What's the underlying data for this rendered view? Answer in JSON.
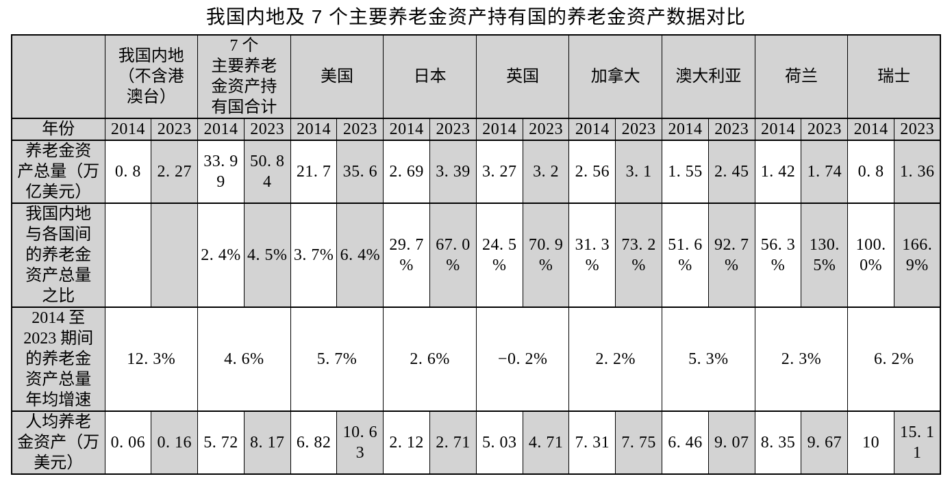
{
  "title": "我国内地及 7 个主要养老金资产持有国的养老金资产数据对比",
  "colors": {
    "page_bg": "#ffffff",
    "header_bg": "#d3d3d3",
    "shaded_cell_bg": "#d3d3d3",
    "border": "#000000",
    "text": "#000000"
  },
  "table": {
    "corner": "",
    "countries": [
      "我国内地\n（不含港\n澳台）",
      "7 个\n主要养老\n金资产持\n有国合计",
      "美国",
      "日本",
      "英国",
      "加拿大",
      "澳大利亚",
      "荷兰",
      "瑞士"
    ],
    "year_label": "年份",
    "years": [
      "2014",
      "2023"
    ],
    "body_rows": [
      {
        "label": "养老金资\n产总量（万\n亿美元）",
        "merged": false,
        "cells": [
          "0. 8",
          "2. 27",
          "33. 9\n9",
          "50. 8\n4",
          "21. 7",
          "35. 6",
          "2. 69",
          "3. 39",
          "3. 27",
          "3. 2",
          "2. 56",
          "3. 1",
          "1. 55",
          "2. 45",
          "1. 42",
          "1. 74",
          "0. 8",
          "1. 36"
        ]
      },
      {
        "label": "我国内地\n与各国间\n的养老金\n资产总量\n之比",
        "merged": false,
        "cells": [
          "",
          "",
          "2. 4%",
          "4. 5%",
          "3. 7%",
          "6. 4%",
          "29. 7\n%",
          "67. 0\n%",
          "24. 5\n%",
          "70. 9\n%",
          "31. 3\n%",
          "73. 2\n%",
          "51. 6\n%",
          "92. 7\n%",
          "56. 3\n%",
          "130.\n5%",
          "100.\n0%",
          "166.\n9%"
        ]
      },
      {
        "label": "2014 至\n2023 期间\n的养老金\n资产总量\n年均增速",
        "merged": true,
        "cells": [
          "12. 3%",
          "4. 6%",
          "5. 7%",
          "2. 6%",
          "−0. 2%",
          "2. 2%",
          "5. 3%",
          "2. 3%",
          "6. 2%"
        ]
      },
      {
        "label": "人均养老\n金资产（万\n美元）",
        "merged": false,
        "cells": [
          "0. 06",
          "0. 16",
          "5. 72",
          "8. 17",
          "6. 82",
          "10. 6\n3",
          "2. 12",
          "2. 71",
          "5. 03",
          "4. 71",
          "7. 31",
          "7. 75",
          "6. 46",
          "9. 07",
          "8. 35",
          "9. 67",
          "10",
          "15. 1\n1"
        ]
      }
    ]
  },
  "chart_data": {
    "type": "table",
    "title": "我国内地及7个主要养老金资产持有国的养老金资产数据对比",
    "columns": [
      "我国内地（不含港澳台）",
      "7个主要养老金资产持有国合计",
      "美国",
      "日本",
      "英国",
      "加拿大",
      "澳大利亚",
      "荷兰",
      "瑞士"
    ],
    "years": [
      2014,
      2023
    ],
    "rows": [
      {
        "metric": "养老金资产总量（万亿美元）",
        "values_2014": [
          0.8,
          33.99,
          21.7,
          2.69,
          3.27,
          2.56,
          1.55,
          1.42,
          0.8
        ],
        "values_2023": [
          2.27,
          50.84,
          35.6,
          3.39,
          3.2,
          3.1,
          2.45,
          1.74,
          1.36
        ]
      },
      {
        "metric": "我国内地与各国间的养老金资产总量之比",
        "values_2014": [
          null,
          "2.4%",
          "3.7%",
          "29.7%",
          "24.5%",
          "31.3%",
          "51.6%",
          "56.3%",
          "100.0%"
        ],
        "values_2023": [
          null,
          "4.5%",
          "6.4%",
          "67.0%",
          "70.9%",
          "73.2%",
          "92.7%",
          "130.5%",
          "166.9%"
        ]
      },
      {
        "metric": "2014至2023期间的养老金资产总量年均增速",
        "values": [
          "12.3%",
          "4.6%",
          "5.7%",
          "2.6%",
          "-0.2%",
          "2.2%",
          "5.3%",
          "2.3%",
          "6.2%"
        ]
      },
      {
        "metric": "人均养老金资产（万美元）",
        "values_2014": [
          0.06,
          5.72,
          6.82,
          2.12,
          5.03,
          7.31,
          6.46,
          8.35,
          10
        ],
        "values_2023": [
          0.16,
          8.17,
          10.63,
          2.71,
          4.71,
          7.75,
          9.07,
          9.67,
          15.11
        ]
      }
    ]
  }
}
